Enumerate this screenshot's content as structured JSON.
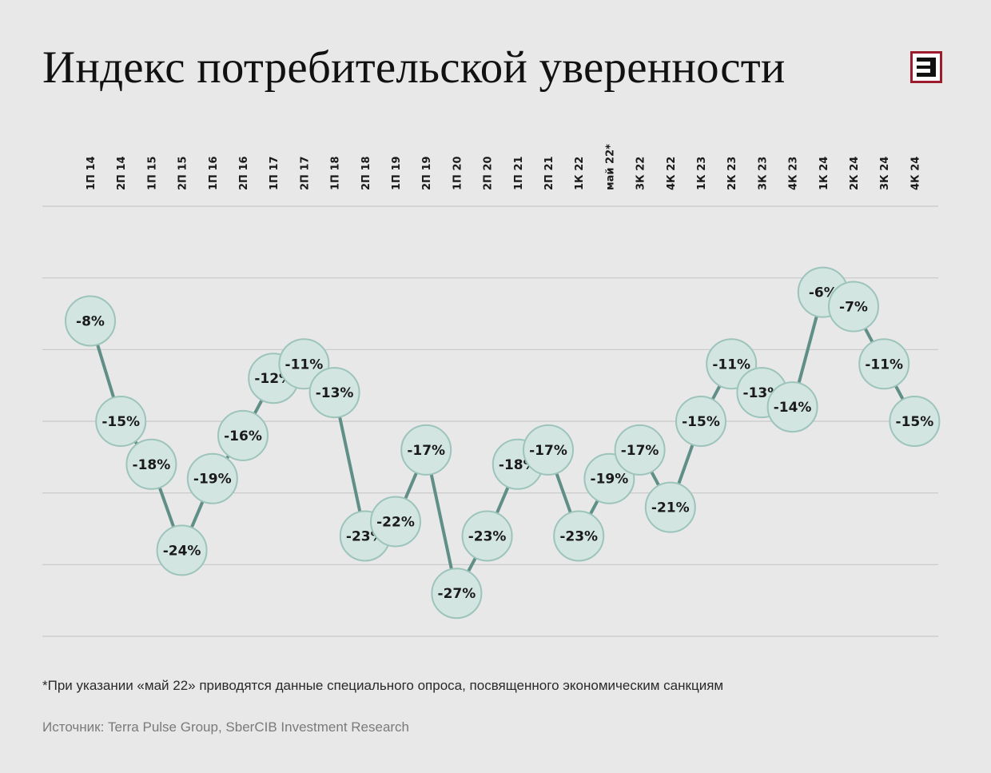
{
  "title": "Индекс потребительской уверенности",
  "footnote": "*При указании «май 22» приводятся данные специального опроса, посвященного экономическим санкциям",
  "source": "Источник: Terra Pulse Group, SberCIB Investment Research",
  "logo": {
    "icon": "e-letter-logo-icon",
    "color": "#9b1c2c"
  },
  "colors": {
    "line": "#5f8f86",
    "marker_fill": "#d3e5e1",
    "marker_stroke": "#9cc4bb",
    "grid": "#c8c8c8"
  },
  "chart_data": {
    "type": "line",
    "title": "Индекс потребительской уверенности",
    "xlabel": "",
    "ylabel": "",
    "grid": true,
    "ylim": [
      -30,
      0
    ],
    "categories": [
      "1П 14",
      "2П 14",
      "1П 15",
      "2П 15",
      "1П 16",
      "2П 16",
      "1П 17",
      "2П 17",
      "1П 18",
      "2П 18",
      "1П 19",
      "2П 19",
      "1П 20",
      "2П 20",
      "1П 21",
      "2П 21",
      "1К 22",
      "май 22*",
      "3К 22",
      "4К 22",
      "1К 23",
      "2К 23",
      "3К 23",
      "4К 23",
      "1К 24",
      "2К 24",
      "3К 24",
      "4К 24"
    ],
    "values": [
      -8,
      -15,
      -18,
      -24,
      -19,
      -16,
      -12,
      -11,
      -13,
      -23,
      -22,
      -17,
      -27,
      -23,
      -18,
      -17,
      -23,
      -19,
      -17,
      -21,
      -15,
      -11,
      -13,
      -14,
      -6,
      -7,
      -11,
      -15
    ],
    "labels": [
      "-8%",
      "-15%",
      "-18%",
      "-24%",
      "-19%",
      "-16%",
      "-12%",
      "-11%",
      "-13%",
      "-23%",
      "-22%",
      "-17%",
      "-27%",
      "-23%",
      "-18%",
      "-17%",
      "-23%",
      "-19%",
      "-17%",
      "-21%",
      "-15%",
      "-11%",
      "-13%",
      "-14%",
      "-6%",
      "-7%",
      "-11%",
      "-15%"
    ]
  }
}
